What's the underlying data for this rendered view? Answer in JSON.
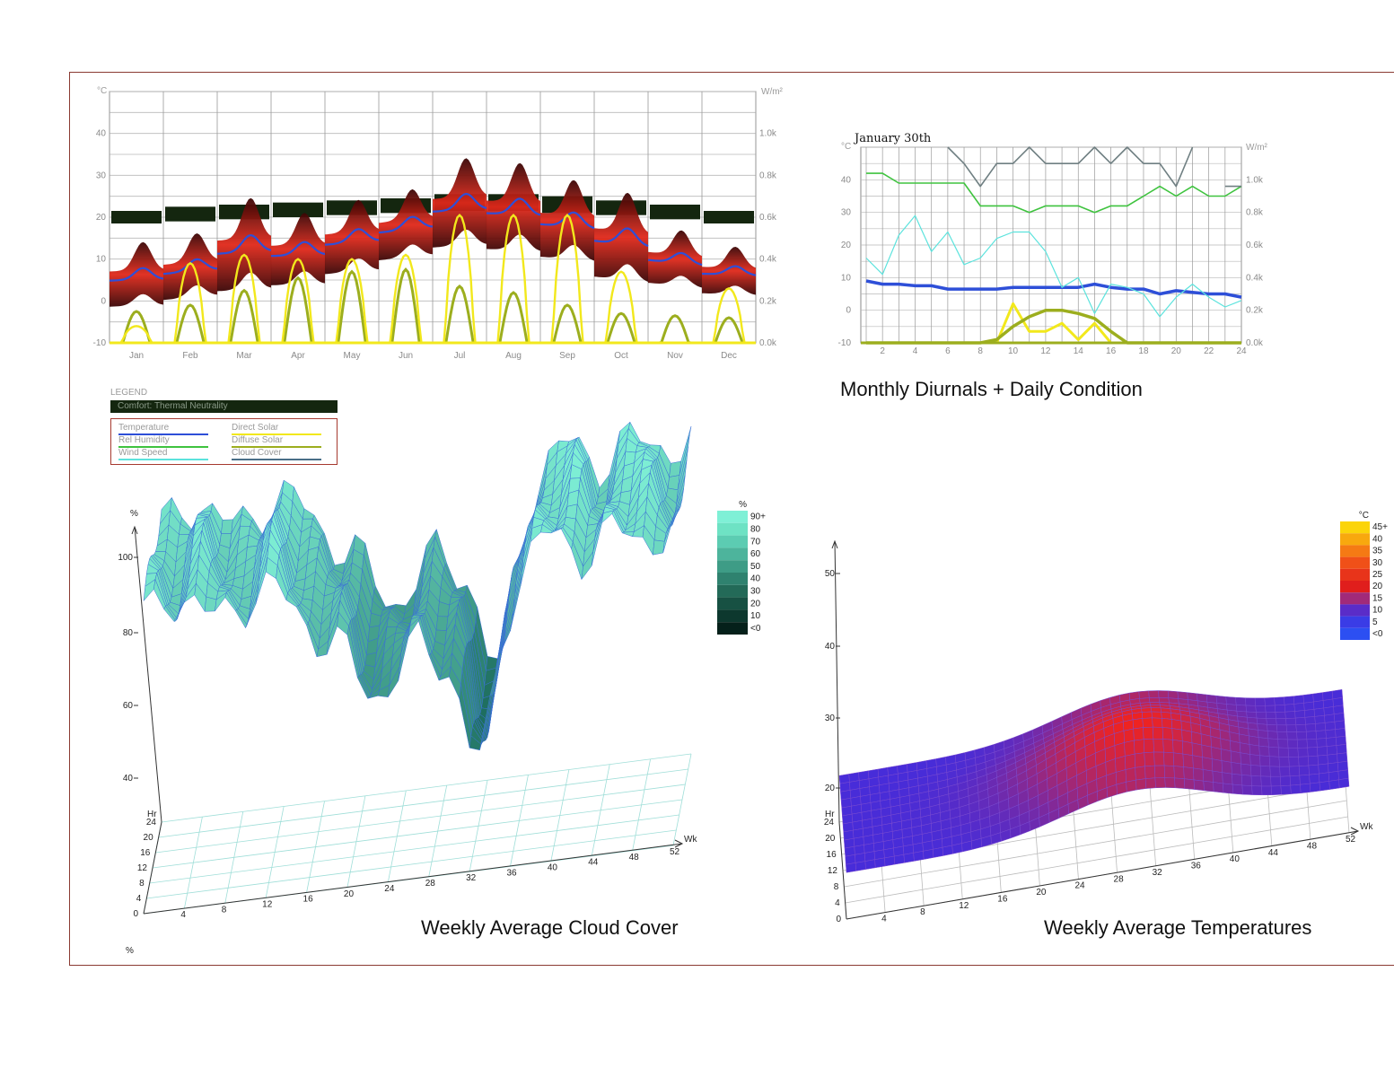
{
  "captions": {
    "diurnal": "Monthly Diurnals + Daily Condition",
    "cloud": "Weekly Average Cloud Cover",
    "temperature": "Weekly Average Temperatures"
  },
  "legend": {
    "title": "LEGEND",
    "comfort": "Comfort: Thermal Neutrality",
    "items": [
      {
        "label": "Temperature",
        "color": "#2e4fd8"
      },
      {
        "label": "Direct Solar",
        "color": "#f2e81c"
      },
      {
        "label": "Rel Humidity",
        "color": "#3fc33f"
      },
      {
        "label": "Diffuse Solar",
        "color": "#9cae1e"
      },
      {
        "label": "Wind Speed",
        "color": "#5ce3dd"
      },
      {
        "label": "Cloud Cover",
        "color": "#4a6f88"
      }
    ]
  },
  "colors": {
    "frame": "#8a3a32",
    "comfort_band": "#14260f",
    "temp_band_dark": "#3a0505",
    "temp_band_light": "#e0281a",
    "temperature": "#2e4fd8",
    "direct_solar": "#f2e81c",
    "diffuse_solar": "#9cae1e",
    "humidity": "#3fc33f",
    "wind": "#5ce3dd",
    "cloud": "#6f7f82",
    "cloud_surface": "#7ff0d6",
    "cloud_mesh": "#3a70d6",
    "temp_surface_cold": "#3a2be8",
    "temp_surface_warm": "#e8241a"
  },
  "chart_data": [
    {
      "id": "monthly",
      "type": "area",
      "left_unit": "°C",
      "right_unit": "W/m²",
      "y_ticks": [
        "40",
        "30",
        "20",
        "10",
        "0",
        "-10"
      ],
      "ylim": [
        -10,
        50
      ],
      "y2_ticks": [
        "1.0k",
        "0.8k",
        "0.6k",
        "0.4k",
        "0.2k",
        "0.0k"
      ],
      "y2lim": [
        0,
        1200
      ],
      "categories": [
        "Jan",
        "Feb",
        "Mar",
        "Apr",
        "May",
        "Jun",
        "Jul",
        "Aug",
        "Sep",
        "Oct",
        "Nov",
        "Dec"
      ],
      "comfort_band": [
        [
          18.5,
          21.5
        ],
        [
          19,
          22.5
        ],
        [
          19.5,
          23
        ],
        [
          20,
          23.5
        ],
        [
          20.5,
          24
        ],
        [
          21,
          24.5
        ],
        [
          21.5,
          25.5
        ],
        [
          21.5,
          25.5
        ],
        [
          21,
          25
        ],
        [
          20.5,
          24
        ],
        [
          19.5,
          23
        ],
        [
          18.5,
          21.5
        ]
      ],
      "temperature": {
        "min": [
          -5,
          -1,
          3,
          3,
          5,
          7,
          10,
          10,
          8,
          4,
          0,
          -1
        ],
        "max": [
          11,
          15,
          26,
          21,
          23,
          24,
          32,
          32,
          28,
          26,
          14,
          11
        ],
        "mean": [
          6,
          8,
          13,
          12,
          15,
          18,
          23,
          22,
          19,
          15,
          10,
          7
        ]
      },
      "direct_solar_peak": [
        80,
        380,
        420,
        400,
        400,
        420,
        610,
        610,
        610,
        340,
        0,
        260
      ],
      "diffuse_solar_peak": [
        150,
        180,
        250,
        310,
        340,
        350,
        270,
        240,
        180,
        140,
        130,
        120
      ]
    },
    {
      "id": "daily",
      "type": "line",
      "title": "January 30th",
      "left_unit": "°C",
      "right_unit": "W/m²",
      "y_ticks": [
        "40",
        "30",
        "20",
        "10",
        "0",
        "-10"
      ],
      "ylim": [
        -10,
        50
      ],
      "y2_ticks": [
        "1.0k",
        "0.8k",
        "0.6k",
        "0.4k",
        "0.2k",
        "0.0k"
      ],
      "y2lim": [
        0,
        1200
      ],
      "x": [
        1,
        2,
        3,
        4,
        5,
        6,
        7,
        8,
        9,
        10,
        11,
        12,
        13,
        14,
        15,
        16,
        17,
        18,
        19,
        20,
        21,
        22,
        23,
        24
      ],
      "x_ticks": [
        "2",
        "4",
        "6",
        "8",
        "10",
        "12",
        "14",
        "16",
        "18",
        "20",
        "22",
        "24"
      ],
      "series": [
        {
          "key": "temperature",
          "values": [
            9,
            8,
            8,
            7.5,
            7.5,
            6.5,
            6.5,
            6.5,
            6.5,
            7,
            7,
            7,
            7,
            7,
            8,
            7,
            6.5,
            6.5,
            5,
            6,
            5.5,
            5,
            5,
            4
          ]
        },
        {
          "key": "humidity",
          "values": [
            42,
            42,
            39,
            39,
            39,
            39,
            39,
            32,
            32,
            32,
            30,
            32,
            32,
            32,
            30,
            32,
            32,
            35,
            38,
            35,
            38,
            35,
            35,
            38
          ]
        },
        {
          "key": "wind",
          "values": [
            16,
            11,
            23,
            29,
            18,
            24,
            14,
            16,
            22,
            24,
            24,
            18,
            7,
            10,
            -1,
            8,
            7,
            5,
            -2,
            4,
            8,
            4,
            1,
            3
          ]
        },
        {
          "key": "cloud",
          "values": [
            null,
            null,
            null,
            null,
            null,
            50,
            45,
            38,
            45,
            45,
            50,
            45,
            45,
            45,
            50,
            45,
            50,
            45,
            45,
            38,
            50,
            null,
            38,
            38
          ]
        },
        {
          "key": "direct_solar",
          "values": [
            0,
            0,
            0,
            0,
            0,
            0,
            0,
            0,
            0,
            240,
            70,
            70,
            120,
            20,
            120,
            0,
            0,
            0,
            0,
            0,
            0,
            0,
            0,
            0
          ]
        },
        {
          "key": "diffuse_solar",
          "values": [
            0,
            0,
            0,
            0,
            0,
            0,
            0,
            0,
            20,
            100,
            160,
            200,
            200,
            180,
            150,
            70,
            0,
            0,
            0,
            0,
            0,
            0,
            0,
            0
          ]
        }
      ]
    },
    {
      "id": "cloud3d",
      "type": "surface",
      "z_unit": "%",
      "z_ticks": [
        "100",
        "80",
        "60",
        "40"
      ],
      "y_label": "Hr",
      "y_ticks": [
        "24",
        "20",
        "16",
        "12",
        "8",
        "4",
        "0"
      ],
      "x_label": "Wk",
      "x_ticks": [
        "4",
        "8",
        "12",
        "16",
        "20",
        "24",
        "28",
        "32",
        "36",
        "40",
        "44",
        "48",
        "52"
      ],
      "scale_unit": "%",
      "scale": [
        "90+",
        "80",
        "70",
        "60",
        "50",
        "40",
        "30",
        "20",
        "10",
        "<0"
      ],
      "scale_colors": [
        "#7ff0d6",
        "#6ee2c4",
        "#5cccb2",
        "#4db49c",
        "#3e9c86",
        "#2f826f",
        "#236a58",
        "#175143",
        "#0d382e",
        "#05201a"
      ],
      "axis_label_bottom": "%"
    },
    {
      "id": "temp3d",
      "type": "surface",
      "z_ticks": [
        "50",
        "40",
        "30",
        "20"
      ],
      "y_label": "Hr",
      "y_ticks": [
        "24",
        "20",
        "16",
        "12",
        "8",
        "4",
        "0"
      ],
      "x_label": "Wk",
      "x_ticks": [
        "4",
        "8",
        "12",
        "16",
        "20",
        "24",
        "28",
        "32",
        "36",
        "40",
        "44",
        "48",
        "52"
      ],
      "scale_unit": "°C",
      "scale": [
        "45+",
        "40",
        "35",
        "30",
        "25",
        "20",
        "15",
        "10",
        "5",
        "<0"
      ],
      "scale_colors": [
        "#fbd40a",
        "#f8a80e",
        "#f57a14",
        "#f05018",
        "#e8341a",
        "#e01e1c",
        "#a12a7a",
        "#5a2cc8",
        "#3a3ce6",
        "#2c4ff2"
      ]
    }
  ]
}
